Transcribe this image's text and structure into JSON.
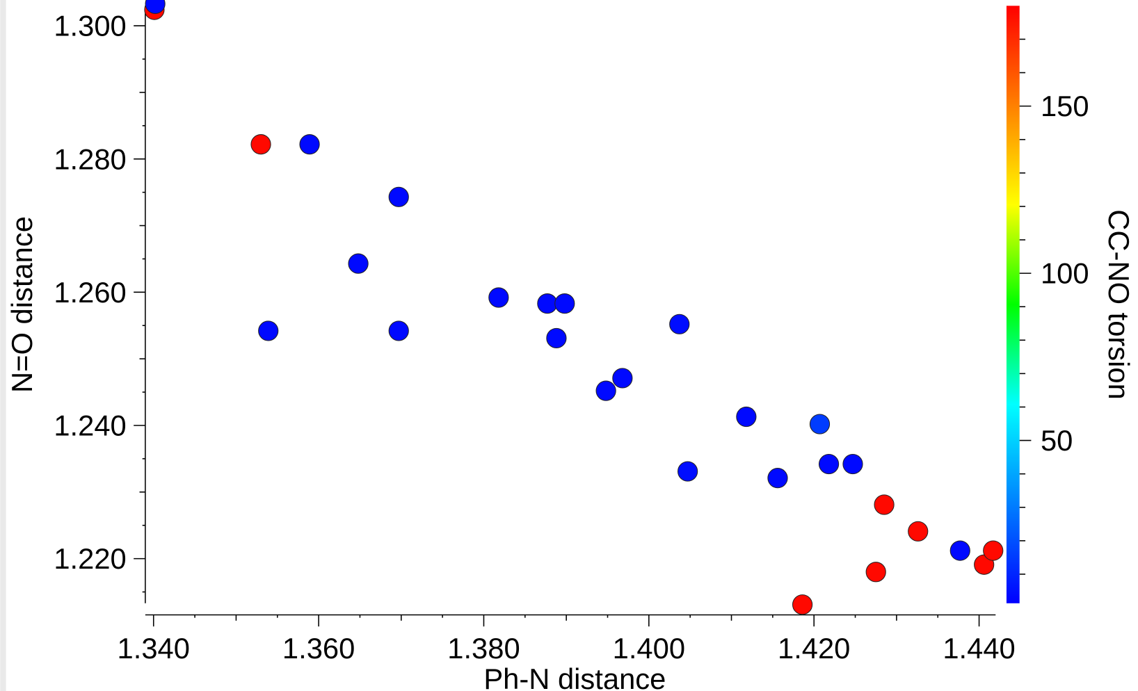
{
  "chart_data": {
    "type": "scatter",
    "title": "",
    "xlabel": "Ph-N distance",
    "ylabel": "N=O distance",
    "colorbar_label": "CC-NO torsion",
    "xlim": [
      1.339,
      1.442
    ],
    "ylim": [
      1.2133,
      1.303
    ],
    "clim": [
      0,
      180
    ],
    "x_ticks": [
      "1.340",
      "1.360",
      "1.380",
      "1.400",
      "1.420",
      "1.440"
    ],
    "y_ticks": [
      "1.300",
      "1.280",
      "1.260",
      "1.240",
      "1.220"
    ],
    "c_ticks": [
      "150",
      "100",
      "50"
    ],
    "grid": false,
    "points": [
      {
        "x": 1.3401,
        "y": 1.3024,
        "c": 178
      },
      {
        "x": 1.3402,
        "y": 1.3033,
        "c": 2
      },
      {
        "x": 1.353,
        "y": 1.2822,
        "c": 178
      },
      {
        "x": 1.3589,
        "y": 1.2822,
        "c": 2
      },
      {
        "x": 1.3697,
        "y": 1.2743,
        "c": 2
      },
      {
        "x": 1.3648,
        "y": 1.2643,
        "c": 2
      },
      {
        "x": 1.3539,
        "y": 1.2542,
        "c": 2
      },
      {
        "x": 1.3697,
        "y": 1.2542,
        "c": 2
      },
      {
        "x": 1.3818,
        "y": 1.2592,
        "c": 2
      },
      {
        "x": 1.3877,
        "y": 1.2583,
        "c": 2
      },
      {
        "x": 1.3898,
        "y": 1.2583,
        "c": 2
      },
      {
        "x": 1.3888,
        "y": 1.2531,
        "c": 2
      },
      {
        "x": 1.4037,
        "y": 1.2552,
        "c": 3
      },
      {
        "x": 1.3948,
        "y": 1.2452,
        "c": 2
      },
      {
        "x": 1.3968,
        "y": 1.2471,
        "c": 2
      },
      {
        "x": 1.4118,
        "y": 1.2413,
        "c": 2
      },
      {
        "x": 1.4207,
        "y": 1.2402,
        "c": 14
      },
      {
        "x": 1.4047,
        "y": 1.2331,
        "c": 3
      },
      {
        "x": 1.4156,
        "y": 1.2321,
        "c": 2
      },
      {
        "x": 1.4218,
        "y": 1.2342,
        "c": 2
      },
      {
        "x": 1.4247,
        "y": 1.2342,
        "c": 2
      },
      {
        "x": 1.4285,
        "y": 1.2281,
        "c": 178
      },
      {
        "x": 1.4326,
        "y": 1.2241,
        "c": 178
      },
      {
        "x": 1.4377,
        "y": 1.2212,
        "c": 2
      },
      {
        "x": 1.4275,
        "y": 1.218,
        "c": 178
      },
      {
        "x": 1.4406,
        "y": 1.2191,
        "c": 178
      },
      {
        "x": 1.4417,
        "y": 1.2212,
        "c": 178
      },
      {
        "x": 1.4186,
        "y": 1.2131,
        "c": 178
      }
    ]
  }
}
